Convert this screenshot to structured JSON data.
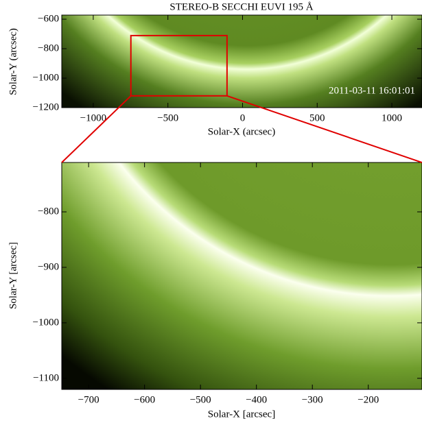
{
  "panels": [
    {
      "title": "STEREO-B SECCHI EUVI 195 Å",
      "timestamp": "2011-03-11 16:01:01",
      "xlabel": "Solar-X (arcsec)",
      "ylabel": "Solar-Y (arcsec)",
      "xlim": [
        -1211,
        1202
      ],
      "ylim": [
        -1200,
        -572
      ],
      "xticks": [
        {
          "value": -1000,
          "label": "−1000"
        },
        {
          "value": -500,
          "label": "−500"
        },
        0,
        500,
        1000
      ],
      "yticks": [
        {
          "value": -600,
          "label": "−600"
        },
        {
          "value": -800,
          "label": "−800"
        },
        {
          "value": -1000,
          "label": "−1000"
        },
        {
          "value": -1200,
          "label": "−1200"
        }
      ]
    },
    {
      "xlabel": "Solar-X [arcsec]",
      "ylabel": "Solar-Y [arcsec]",
      "xlim": [
        -748,
        -104
      ],
      "ylim": [
        -1120,
        -711
      ],
      "xticks": [
        {
          "value": -700,
          "label": "−700"
        },
        {
          "value": -600,
          "label": "−600"
        },
        {
          "value": -500,
          "label": "−500"
        },
        {
          "value": -400,
          "label": "−400"
        },
        {
          "value": -300,
          "label": "−300"
        },
        {
          "value": -200,
          "label": "−200"
        }
      ],
      "yticks": [
        {
          "value": -800,
          "label": "−800"
        },
        {
          "value": -900,
          "label": "−900"
        },
        {
          "value": -1000,
          "label": "−1000"
        },
        {
          "value": -1100,
          "label": "−1100"
        }
      ]
    }
  ]
}
